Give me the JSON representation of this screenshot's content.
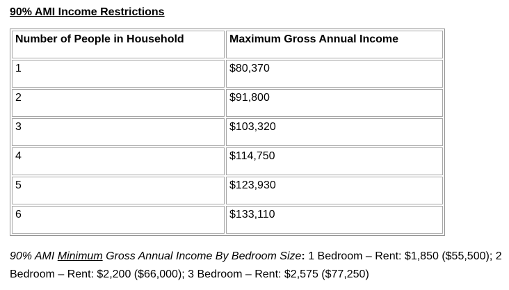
{
  "document": {
    "title": "90% AMI Income Restrictions"
  },
  "income_table": {
    "columns": [
      "Number of People in Household",
      "Maximum Gross Annual Income"
    ],
    "rows": [
      {
        "people": "1",
        "income": "$80,370"
      },
      {
        "people": "2",
        "income": "$91,800"
      },
      {
        "people": "3",
        "income": "$103,320"
      },
      {
        "people": "4",
        "income": "$114,750"
      },
      {
        "people": "5",
        "income": "$123,930"
      },
      {
        "people": "6",
        "income": "$133,110"
      }
    ]
  },
  "footnote": {
    "lead_italic_pre": "90% AMI ",
    "underlined_word": "Minimum",
    "lead_italic_post": " Gross Annual Income By Bedroom Size",
    "colon": ":",
    "details": " 1 Bedroom – Rent: $1,850 ($55,500); 2 Bedroom – Rent: $2,200 ($66,000); 3 Bedroom – Rent: $2,575 ($77,250)"
  }
}
